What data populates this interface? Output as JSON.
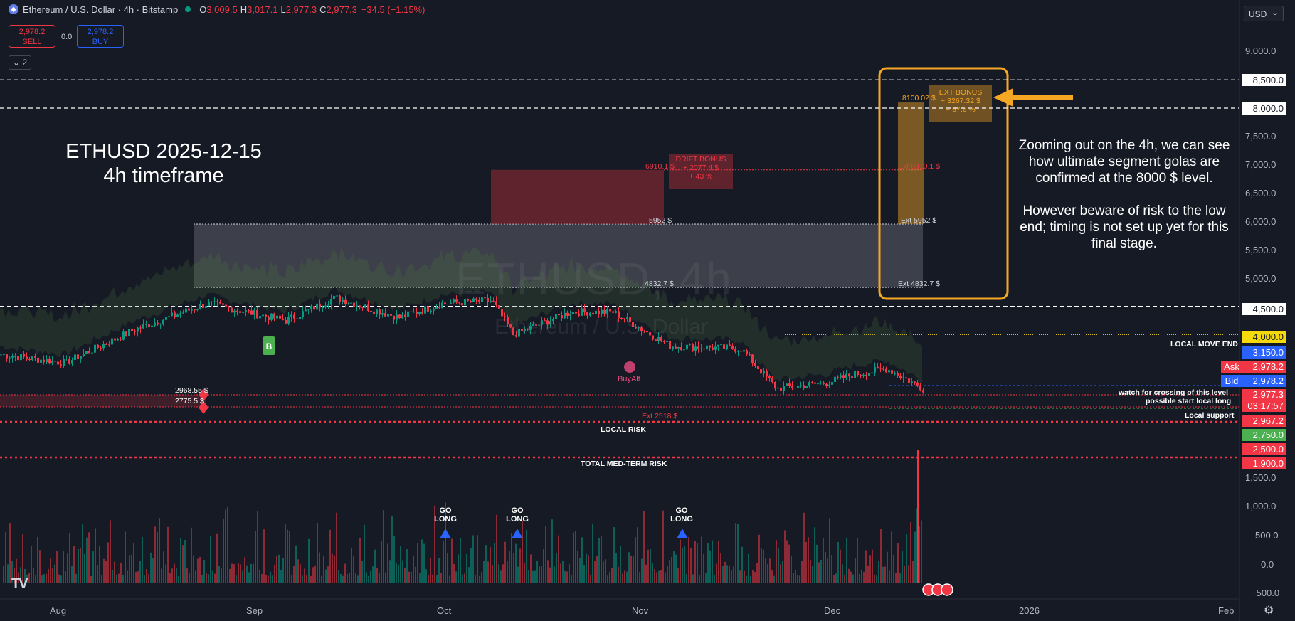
{
  "header": {
    "title": "Ethereum / U.S. Dollar · 4h · Bitstamp",
    "ohlc": [
      {
        "label": "O",
        "value": "3,009.5"
      },
      {
        "label": "H",
        "value": "3,017.1"
      },
      {
        "label": "L",
        "value": "2,977.3"
      },
      {
        "label": "C",
        "value": "2,977.3"
      }
    ],
    "change": "−34.5 (−1.15%)"
  },
  "trade": {
    "sell_price": "2,978.2",
    "sell_label": "SELL",
    "spread": "0.0",
    "buy_price": "2,978.2",
    "buy_label": "BUY"
  },
  "indicators_count": "2",
  "currency": "USD",
  "annotations": {
    "title_line1": "ETHUSD 2025-12-15",
    "title_line2": "4h timeframe",
    "note_p1": "Zooming out on the 4h, we can see how ultimate segment golas are confirmed at the 8000 $ level.",
    "note_p2": "However beware of risk to the low end; timing is not set up yet for this final stage."
  },
  "watermark": {
    "symbol": "ETHUSD, 4h",
    "name": "Ethereum / U.S. Dollar"
  },
  "chart_labels": {
    "drift_bonus": [
      "DRIFT BONUS",
      "+ 2077.4 $",
      "+ 43 %"
    ],
    "ext_bonus": [
      "EXT BONUS",
      "+ 3267.32 $",
      "+ 67.6 %"
    ],
    "p6910": "6910.1 $",
    "p5952": "5952 $",
    "p4832": "4832.7 $",
    "p8100": "8100.02 $",
    "ext6910": "Ext 6910.1 $",
    "ext5952": "Ext 5952 $",
    "ext4832": "Ext 4832.7 $",
    "ext2518": "Ext 2518 $",
    "p2968": "2968.55 $",
    "p2775": "2775.5 $",
    "buyalt": "BuyAlt",
    "b_marker": "B",
    "local_risk": "LOCAL RISK",
    "total_risk": "TOTAL MED-TERM RISK",
    "local_move_end": "LOCAL MOVE END",
    "watch_cross": "watch for crossing of this level",
    "possible_start": "possible start local long",
    "local_support": "Local support"
  },
  "signals": [
    {
      "line1": "GO",
      "line2": "LONG"
    },
    {
      "line1": "GO",
      "line2": "LONG"
    },
    {
      "line1": "GO",
      "line2": "LONG"
    }
  ],
  "y_axis": {
    "labels": [
      "9,000.0",
      "7,500.0",
      "7,000.0",
      "6,500.0",
      "6,000.0",
      "5,500.0",
      "5,000.0",
      "1,500.0",
      "1,000.0",
      "500.0",
      "0.0",
      "−500.0"
    ],
    "boxes": {
      "b8500": "8,500.0",
      "b8000": "8,000.0",
      "b4500": "4,500.0",
      "b4000": "4,000.0",
      "b3150": "3,150.0",
      "ask_label": "Ask",
      "ask": "2,978.2",
      "bid_label": "Bid",
      "bid": "2,978.2",
      "last": "2,977.3",
      "countdown": "03:17:57",
      "b2967": "2,967.2",
      "b2750": "2,750.0",
      "b2500": "2,500.0",
      "b1900": "1,900.0"
    }
  },
  "x_axis": [
    "Aug",
    "Sep",
    "Oct",
    "Nov",
    "Dec",
    "2026",
    "Feb"
  ],
  "colors": {
    "bg": "#161a25",
    "up": "#089981",
    "down": "#f23645",
    "accent": "#f5a623",
    "drift": "#9c2b36",
    "band": "#3a4a30"
  },
  "icons": {
    "symbol": "ethereum-icon",
    "logo": "tradingview-logo",
    "settings": "gear-icon"
  }
}
